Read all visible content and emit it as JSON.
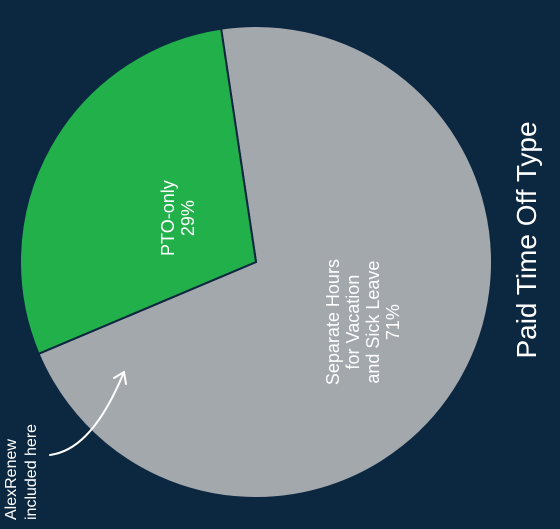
{
  "chart_data": {
    "type": "pie",
    "title": "Paid Time Off Type",
    "slices": [
      {
        "label_lines": [
          "Separate Hours",
          "for Vacation",
          "and Sick Leave"
        ],
        "value": 71,
        "value_label": "71%",
        "color": "#a3a8ad"
      },
      {
        "label_lines": [
          "PTO-only"
        ],
        "value": 29,
        "value_label": "29%",
        "color": "#22b04b"
      }
    ],
    "annotation": {
      "lines": [
        "AlexRenew",
        "included here"
      ],
      "points_to": "PTO-only"
    },
    "colors": {
      "background": "#0c2740",
      "text": "#ffffff",
      "slice_border": "#0c2740"
    }
  }
}
